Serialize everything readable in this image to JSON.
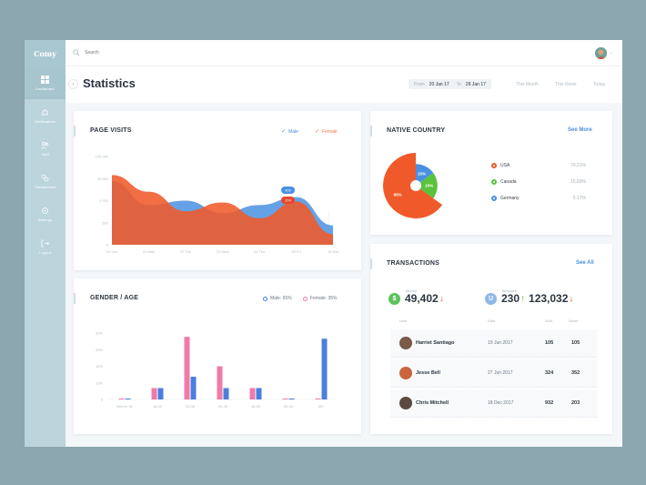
{
  "app": {
    "logo": "Comy"
  },
  "sidebar": {
    "items": [
      {
        "label": "Dashboard",
        "icon": "grid-icon",
        "active": true
      },
      {
        "label": "Notifications",
        "icon": "bell-icon",
        "active": false
      },
      {
        "label": "Staff",
        "icon": "users-icon",
        "active": false
      },
      {
        "label": "Transactions",
        "icon": "transactions-icon",
        "active": false
      },
      {
        "label": "Settings",
        "icon": "gear-icon",
        "active": false
      },
      {
        "label": "Logout",
        "icon": "logout-icon",
        "active": false
      }
    ]
  },
  "search": {
    "placeholder": "Search"
  },
  "header": {
    "title": "Statistics",
    "from_label": "From",
    "from_value": "20 Jan 17",
    "to_label": "To",
    "to_value": "26 Jan 17",
    "range_options": [
      "This Month",
      "This Week",
      "Today"
    ]
  },
  "page_visits": {
    "title": "PAGE VISITS",
    "legend": [
      {
        "name": "Male",
        "color": "#4a90e2"
      },
      {
        "name": "Female",
        "color": "#f07a4a"
      }
    ],
    "tooltips": [
      "400",
      "204"
    ]
  },
  "native_country": {
    "title": "NATIVE COUNTRY",
    "link": "See More",
    "slices": [
      {
        "name": "USA",
        "label": "65%",
        "color": "#f05a2a",
        "pct": "70.21%"
      },
      {
        "name": "Canada",
        "label": "20%",
        "color": "#5ac23c",
        "pct": "15.69%"
      },
      {
        "name": "Germany",
        "label": "15%",
        "color": "#4a90e2",
        "pct": "5.17%"
      }
    ]
  },
  "gender_age": {
    "title": "GENDER / AGE",
    "legend": [
      {
        "name": "Male: 65%",
        "color": "#4a7fe0"
      },
      {
        "name": "Female: 35%",
        "color": "#f07aa9"
      }
    ]
  },
  "transactions": {
    "title": "TRANSACTIONS",
    "link": "See All",
    "money": {
      "label": "Money",
      "value": "49,402",
      "badge": "$"
    },
    "bonuses": {
      "label": "Bonuses",
      "value1": "230",
      "value2": "123,032",
      "badge": "U"
    },
    "columns": [
      "User",
      "Date",
      "Sold",
      "Spent"
    ],
    "rows": [
      {
        "name": "Harriet Santiago",
        "date": "19 Jun 2017",
        "sold": "105",
        "spent": "105"
      },
      {
        "name": "Jesse Bell",
        "date": "27 Jun 2017",
        "sold": "324",
        "spent": "352"
      },
      {
        "name": "Chris Mitchell",
        "date": "18 Dec 2017",
        "sold": "932",
        "spent": "203"
      }
    ]
  },
  "chart_data": [
    {
      "type": "area",
      "title": "PAGE VISITS",
      "x": [
        "20 Jan",
        "21 Jan",
        "22 Jan",
        "23 Jan",
        "24 Jan",
        "25 Jan",
        "25 Jan"
      ],
      "x_display": [
        "20 Sun",
        "21 Mon",
        "22 Tue",
        "23 Wed",
        "24 Thu",
        "25 Fri",
        "25 Sat"
      ],
      "yticks": [
        "0",
        "500",
        "1 000",
        "10 000",
        "100 000"
      ],
      "ylim": [
        0,
        100000
      ],
      "series": [
        {
          "name": "Male",
          "color": "#4a90e2",
          "values": [
            72000,
            45000,
            50000,
            36000,
            45000,
            54000,
            22000
          ]
        },
        {
          "name": "Female",
          "color": "#f05a2a",
          "values": [
            79000,
            60000,
            38000,
            48000,
            30000,
            49000,
            12000
          ]
        }
      ]
    },
    {
      "type": "pie",
      "title": "NATIVE COUNTRY",
      "labels": [
        "USA",
        "Canada",
        "Germany"
      ],
      "values": [
        65,
        20,
        15
      ]
    },
    {
      "type": "bar",
      "title": "GENDER / AGE",
      "categories": [
        "Before 18",
        "18-25",
        "25-35",
        "35-45",
        "45-55",
        "55-65",
        "65+"
      ],
      "categories_display": [
        "Before 18",
        "18-25",
        "25-35",
        "35-45",
        "45-55",
        "55-65",
        "65+"
      ],
      "yticks": [
        "0",
        "10%",
        "15%",
        "25%",
        "30%"
      ],
      "ylim": [
        0,
        35
      ],
      "series": [
        {
          "name": "Female",
          "color": "#f07aa9",
          "values": [
            0.5,
            6,
            33,
            17.5,
            6,
            0.5,
            0.5
          ]
        },
        {
          "name": "Male",
          "color": "#4a7fe0",
          "values": [
            0.5,
            6,
            12,
            6,
            6,
            0.5,
            32
          ]
        }
      ]
    }
  ]
}
